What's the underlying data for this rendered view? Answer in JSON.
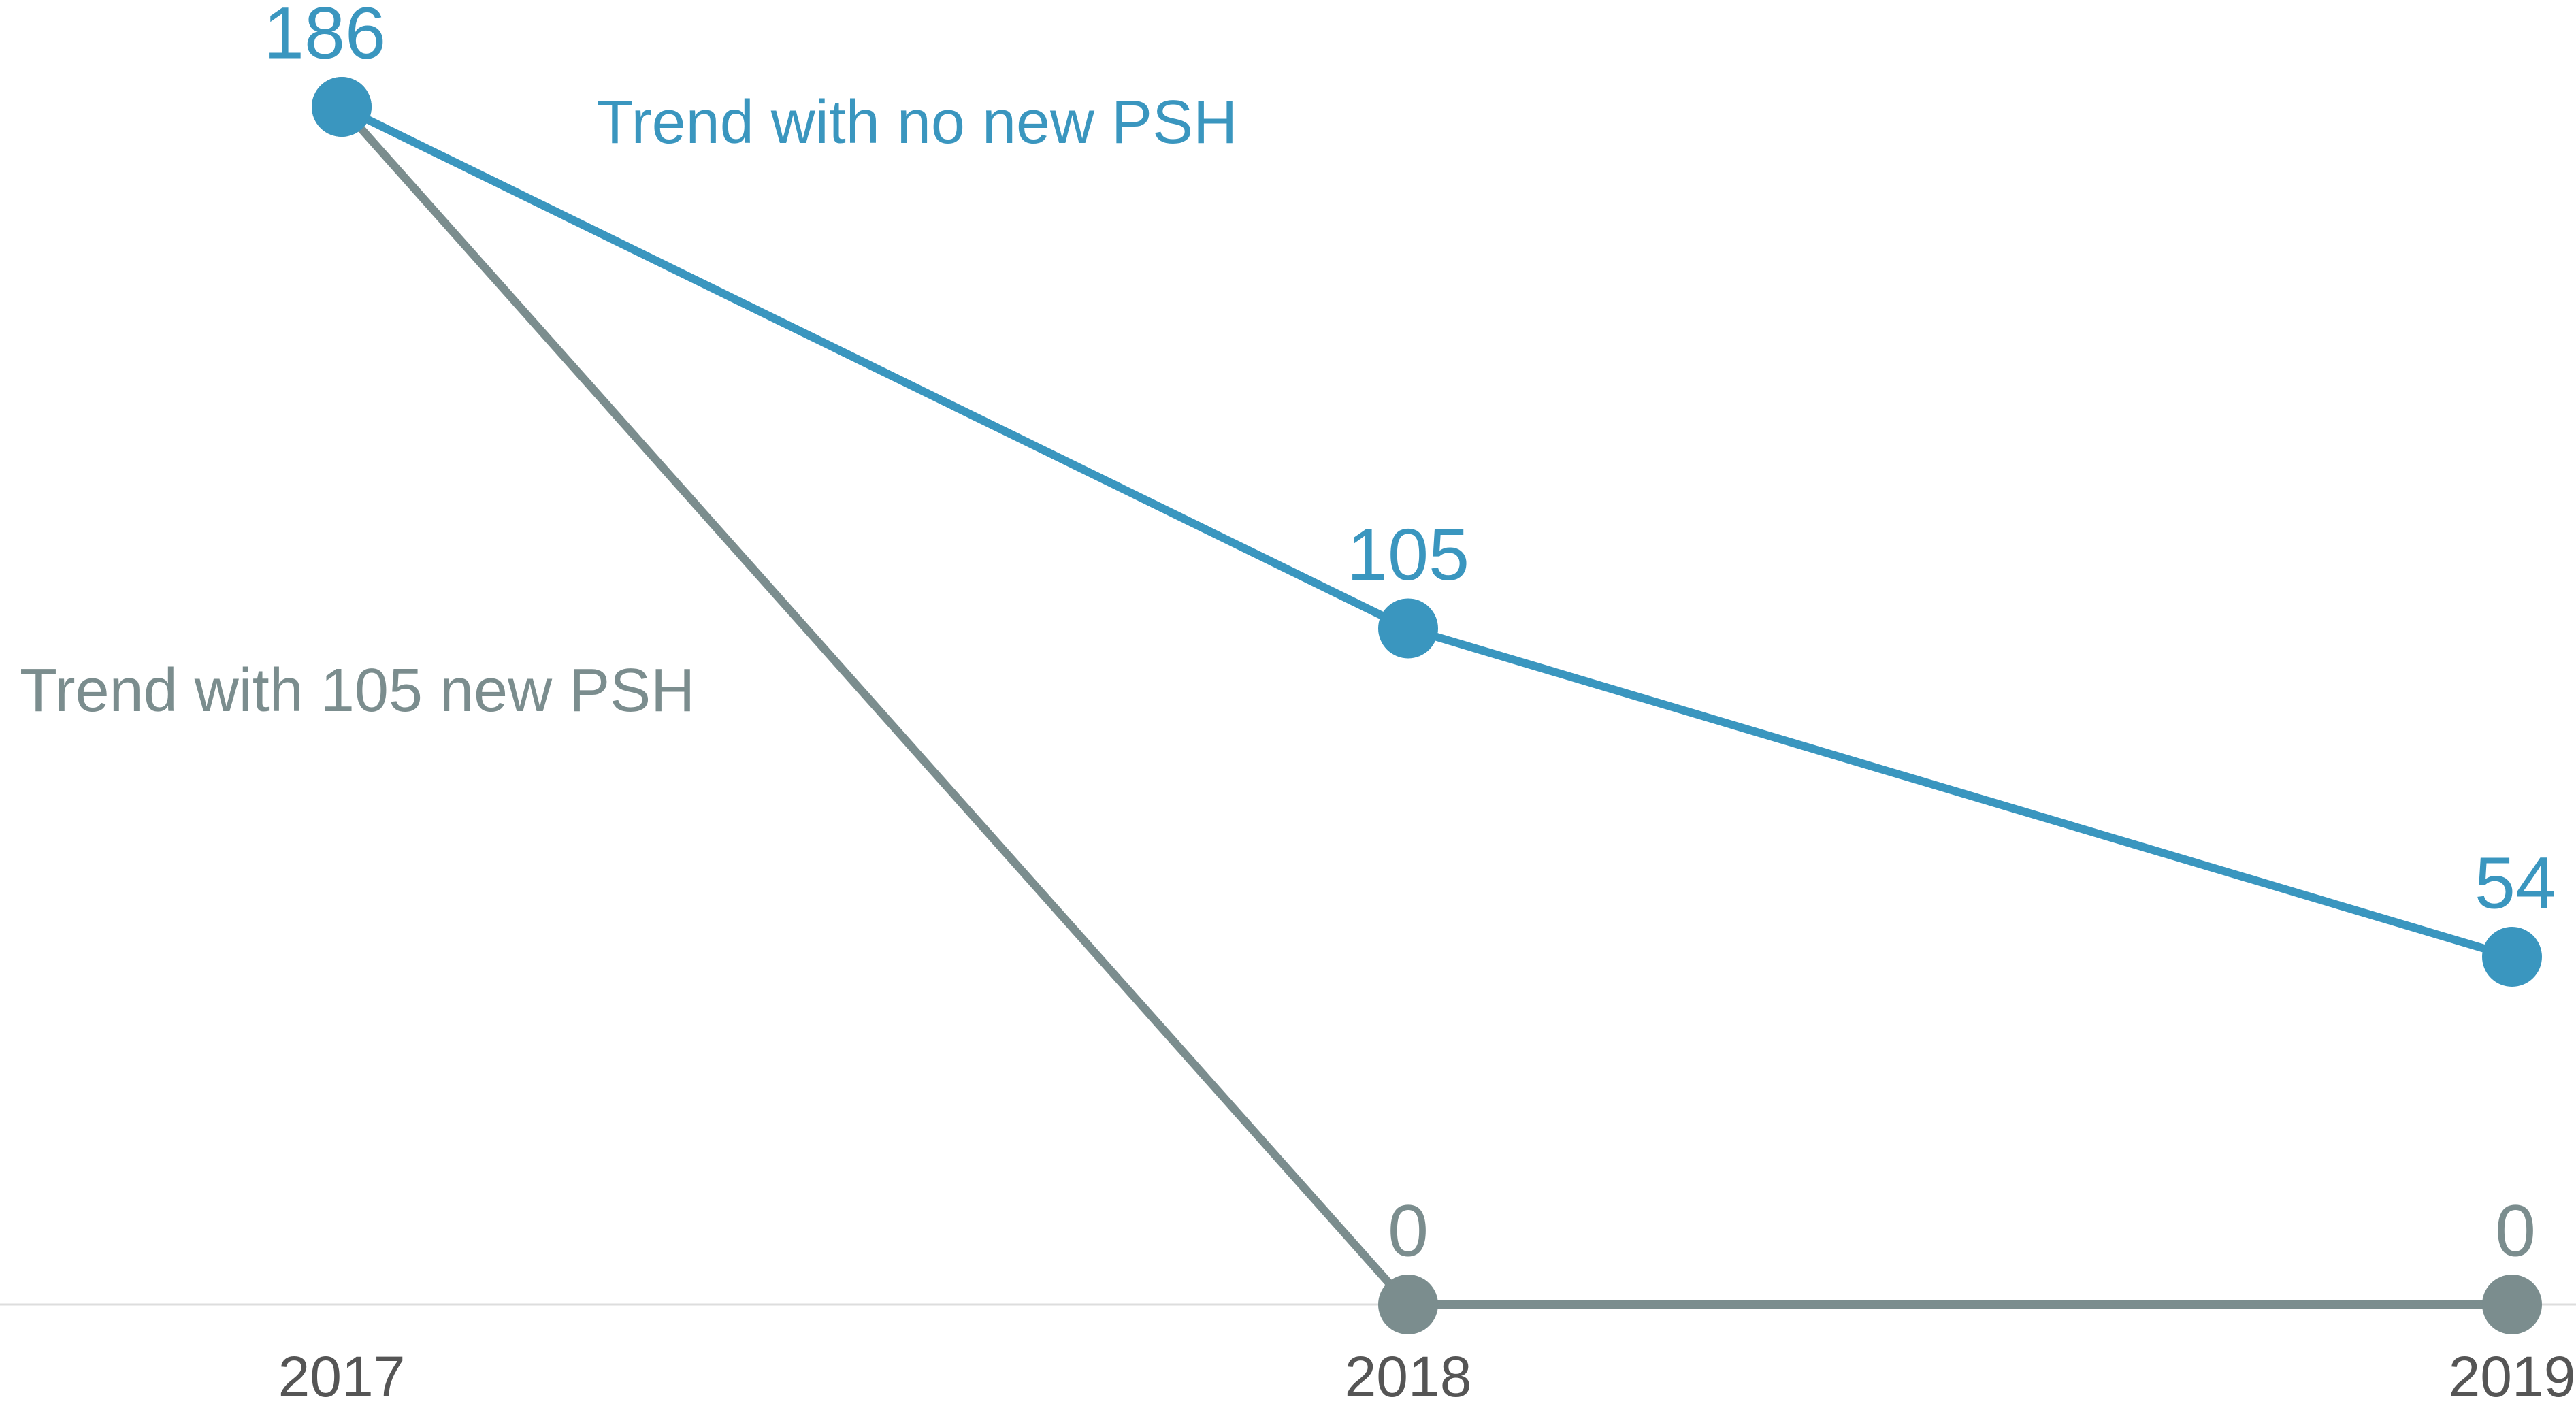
{
  "chart_data": {
    "type": "line",
    "categories": [
      "2017",
      "2018",
      "2019"
    ],
    "series": [
      {
        "name": "Trend with no new PSH",
        "color": "#3a96bf",
        "values": [
          186,
          105,
          54
        ]
      },
      {
        "name": "Trend with 105 new PSH",
        "color": "#7b8d8e",
        "values": [
          186,
          0,
          0
        ]
      }
    ],
    "ylim": [
      0,
      186
    ]
  }
}
